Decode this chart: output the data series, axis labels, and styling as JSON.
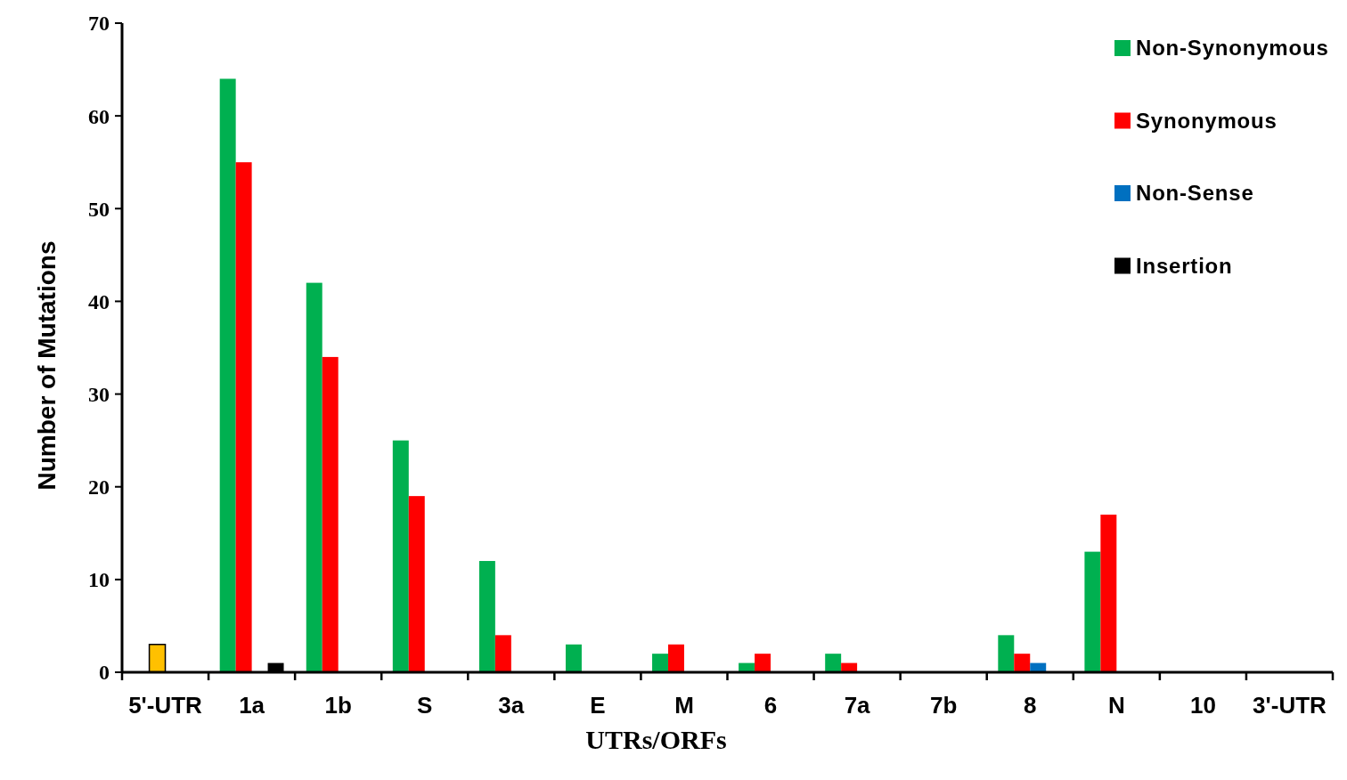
{
  "chart_data": {
    "type": "bar",
    "xlabel": "UTRs/ORFs",
    "ylabel": "Number of Mutations",
    "categories": [
      "5'-UTR",
      "1a",
      "1b",
      "S",
      "3a",
      "E",
      "M",
      "6",
      "7a",
      "7b",
      "8",
      "N",
      "10",
      "3'-UTR"
    ],
    "series": [
      {
        "name": "Non-Synonymous",
        "color": "#00b050",
        "values": [
          0,
          64,
          42,
          25,
          12,
          3,
          2,
          1,
          2,
          0,
          4,
          13,
          0,
          0
        ]
      },
      {
        "name": "Synonymous",
        "color": "#ff0000",
        "colors": [
          "#ffc000",
          "#ff0000",
          "#ff0000",
          "#ff0000",
          "#ff0000",
          "#ff0000",
          "#ff0000",
          "#ff0000",
          "#ff0000",
          "#ff0000",
          "#ff0000",
          "#ff0000",
          "#ff0000",
          "#ff0000"
        ],
        "values": [
          3,
          55,
          34,
          19,
          4,
          0,
          3,
          2,
          1,
          0,
          2,
          17,
          0,
          0
        ]
      },
      {
        "name": "Non-Sense",
        "color": "#0070c0",
        "values": [
          0,
          0,
          0,
          0,
          0,
          0,
          0,
          0,
          0,
          0,
          1,
          0,
          0,
          0
        ]
      },
      {
        "name": "Insertion",
        "color": "#000000",
        "values": [
          0,
          1,
          0,
          0,
          0,
          0,
          0,
          0,
          0,
          0,
          0,
          0,
          0,
          0
        ]
      }
    ],
    "ylim": [
      0,
      70
    ],
    "yticks": [
      0,
      10,
      20,
      30,
      40,
      50,
      60,
      70
    ],
    "grid": false,
    "legend": "top right"
  }
}
